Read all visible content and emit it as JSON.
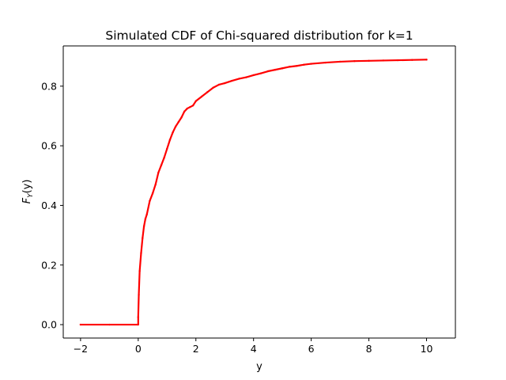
{
  "chart_data": {
    "type": "line",
    "title": "Simulated CDF of Chi-squared distribution for k=1",
    "xlabel": "y",
    "ylabel": "F_Y(y)",
    "ylabel_parts": {
      "main": "F",
      "sub": "Y",
      "arg": "(y)"
    },
    "xlim": [
      -2.6,
      11.0
    ],
    "ylim": [
      -0.045,
      0.935
    ],
    "x_ticks": [
      -2,
      0,
      2,
      4,
      6,
      8,
      10
    ],
    "x_tick_labels": [
      "−2",
      "0",
      "2",
      "4",
      "6",
      "8",
      "10"
    ],
    "y_ticks": [
      0.0,
      0.2,
      0.4,
      0.6,
      0.8
    ],
    "y_tick_labels": [
      "0.0",
      "0.2",
      "0.4",
      "0.6",
      "0.8"
    ],
    "grid": false,
    "legend": "none",
    "color": "#ff0000",
    "series": [
      {
        "x": [
          -2.0,
          -1.0,
          0.0,
          0.0,
          0.02,
          0.05,
          0.1,
          0.15,
          0.2,
          0.25,
          0.3,
          0.4,
          0.5,
          0.6,
          0.7,
          0.8,
          0.9,
          1.0,
          1.1,
          1.2,
          1.3,
          1.4,
          1.5,
          1.6,
          1.7,
          1.8,
          1.9,
          2.0,
          2.2,
          2.4,
          2.6,
          2.8,
          3.0,
          3.25,
          3.5,
          3.75,
          4.0,
          4.25,
          4.5,
          4.75,
          5.0,
          5.25,
          5.5,
          5.75,
          6.0,
          6.5,
          7.0,
          7.5,
          8.0,
          8.5,
          9.0,
          9.5,
          10.0
        ],
        "y": [
          0.0,
          0.0,
          0.0,
          0.025,
          0.1,
          0.18,
          0.24,
          0.29,
          0.33,
          0.355,
          0.37,
          0.415,
          0.44,
          0.47,
          0.51,
          0.535,
          0.56,
          0.59,
          0.62,
          0.645,
          0.665,
          0.68,
          0.695,
          0.715,
          0.725,
          0.73,
          0.735,
          0.75,
          0.765,
          0.78,
          0.795,
          0.805,
          0.81,
          0.818,
          0.825,
          0.83,
          0.837,
          0.843,
          0.85,
          0.855,
          0.86,
          0.865,
          0.868,
          0.872,
          0.875,
          0.879,
          0.882,
          0.884,
          0.885,
          0.886,
          0.887,
          0.888,
          0.889
        ]
      }
    ]
  }
}
